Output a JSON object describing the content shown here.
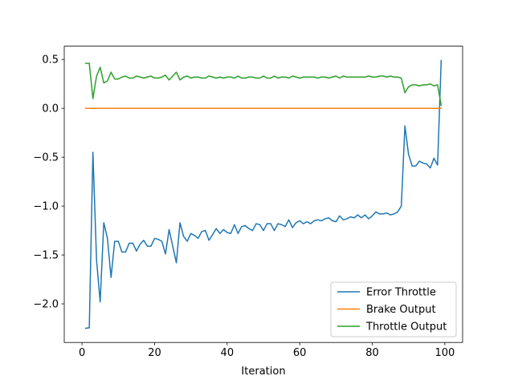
{
  "chart_data": {
    "type": "line",
    "title": "",
    "xlabel": "Iteration",
    "ylabel": "",
    "xlim": [
      -4.9,
      104.9
    ],
    "ylim": [
      -2.395,
      0.636
    ],
    "x_ticks": [
      0,
      20,
      40,
      60,
      80,
      100
    ],
    "y_ticks": [
      -2.0,
      -1.5,
      -1.0,
      -0.5,
      0.0,
      0.5
    ],
    "grid": false,
    "legend_position": "lower-right",
    "series": [
      {
        "name": "Error Throttle",
        "color": "#1f77b4",
        "x": [
          1,
          2,
          3,
          4,
          5,
          6,
          7,
          8,
          9,
          10,
          11,
          12,
          13,
          14,
          15,
          16,
          17,
          18,
          19,
          20,
          21,
          22,
          23,
          24,
          25,
          26,
          27,
          28,
          29,
          30,
          31,
          32,
          33,
          34,
          35,
          36,
          37,
          38,
          39,
          40,
          41,
          42,
          43,
          44,
          45,
          46,
          47,
          48,
          49,
          50,
          51,
          52,
          53,
          54,
          55,
          56,
          57,
          58,
          59,
          60,
          61,
          62,
          63,
          64,
          65,
          66,
          67,
          68,
          69,
          70,
          71,
          72,
          73,
          74,
          75,
          76,
          77,
          78,
          79,
          80,
          81,
          82,
          83,
          84,
          85,
          86,
          87,
          88,
          89,
          90,
          91,
          92,
          93,
          94,
          95,
          96,
          97,
          98,
          99
        ],
        "y": [
          -2.25,
          -2.245,
          -0.45,
          -1.55,
          -1.98,
          -1.17,
          -1.33,
          -1.73,
          -1.36,
          -1.36,
          -1.47,
          -1.47,
          -1.38,
          -1.38,
          -1.46,
          -1.39,
          -1.35,
          -1.41,
          -1.41,
          -1.33,
          -1.34,
          -1.36,
          -1.49,
          -1.24,
          -1.41,
          -1.58,
          -1.17,
          -1.31,
          -1.36,
          -1.28,
          -1.3,
          -1.33,
          -1.26,
          -1.25,
          -1.35,
          -1.29,
          -1.23,
          -1.28,
          -1.24,
          -1.27,
          -1.28,
          -1.19,
          -1.28,
          -1.21,
          -1.2,
          -1.23,
          -1.25,
          -1.18,
          -1.19,
          -1.25,
          -1.18,
          -1.18,
          -1.25,
          -1.18,
          -1.19,
          -1.21,
          -1.14,
          -1.22,
          -1.17,
          -1.15,
          -1.18,
          -1.16,
          -1.18,
          -1.15,
          -1.14,
          -1.15,
          -1.13,
          -1.12,
          -1.15,
          -1.16,
          -1.1,
          -1.14,
          -1.13,
          -1.11,
          -1.12,
          -1.09,
          -1.12,
          -1.09,
          -1.13,
          -1.1,
          -1.06,
          -1.08,
          -1.08,
          -1.07,
          -1.09,
          -1.08,
          -1.06,
          -1.0,
          -0.18,
          -0.47,
          -0.59,
          -0.59,
          -0.54,
          -0.56,
          -0.57,
          -0.61,
          -0.51,
          -0.58,
          0.49
        ]
      },
      {
        "name": "Brake Output",
        "color": "#ff7f0e",
        "x": [
          1,
          99
        ],
        "y": [
          0.0,
          0.0
        ]
      },
      {
        "name": "Throttle Output",
        "color": "#2ca02c",
        "x": [
          1,
          2,
          3,
          4,
          5,
          6,
          7,
          8,
          9,
          10,
          11,
          12,
          13,
          14,
          15,
          16,
          17,
          18,
          19,
          20,
          21,
          22,
          23,
          24,
          25,
          26,
          27,
          28,
          29,
          30,
          31,
          32,
          33,
          34,
          35,
          36,
          37,
          38,
          39,
          40,
          41,
          42,
          43,
          44,
          45,
          46,
          47,
          48,
          49,
          50,
          51,
          52,
          53,
          54,
          55,
          56,
          57,
          58,
          59,
          60,
          61,
          62,
          63,
          64,
          65,
          66,
          67,
          68,
          69,
          70,
          71,
          72,
          73,
          74,
          75,
          76,
          77,
          78,
          79,
          80,
          81,
          82,
          83,
          84,
          85,
          86,
          87,
          88,
          89,
          90,
          91,
          92,
          93,
          94,
          95,
          96,
          97,
          98,
          99
        ],
        "y": [
          0.46,
          0.46,
          0.1,
          0.33,
          0.42,
          0.26,
          0.28,
          0.37,
          0.3,
          0.3,
          0.32,
          0.33,
          0.31,
          0.31,
          0.33,
          0.32,
          0.31,
          0.32,
          0.33,
          0.31,
          0.31,
          0.32,
          0.34,
          0.29,
          0.33,
          0.37,
          0.29,
          0.32,
          0.33,
          0.31,
          0.32,
          0.32,
          0.31,
          0.31,
          0.33,
          0.32,
          0.31,
          0.32,
          0.31,
          0.32,
          0.32,
          0.31,
          0.33,
          0.31,
          0.31,
          0.32,
          0.32,
          0.31,
          0.31,
          0.33,
          0.31,
          0.31,
          0.33,
          0.31,
          0.32,
          0.32,
          0.31,
          0.33,
          0.32,
          0.31,
          0.32,
          0.32,
          0.32,
          0.32,
          0.31,
          0.32,
          0.32,
          0.31,
          0.32,
          0.33,
          0.31,
          0.33,
          0.32,
          0.32,
          0.32,
          0.32,
          0.32,
          0.32,
          0.33,
          0.32,
          0.32,
          0.33,
          0.33,
          0.32,
          0.33,
          0.32,
          0.32,
          0.31,
          0.16,
          0.22,
          0.24,
          0.24,
          0.23,
          0.24,
          0.24,
          0.25,
          0.23,
          0.24,
          0.03
        ]
      }
    ]
  }
}
